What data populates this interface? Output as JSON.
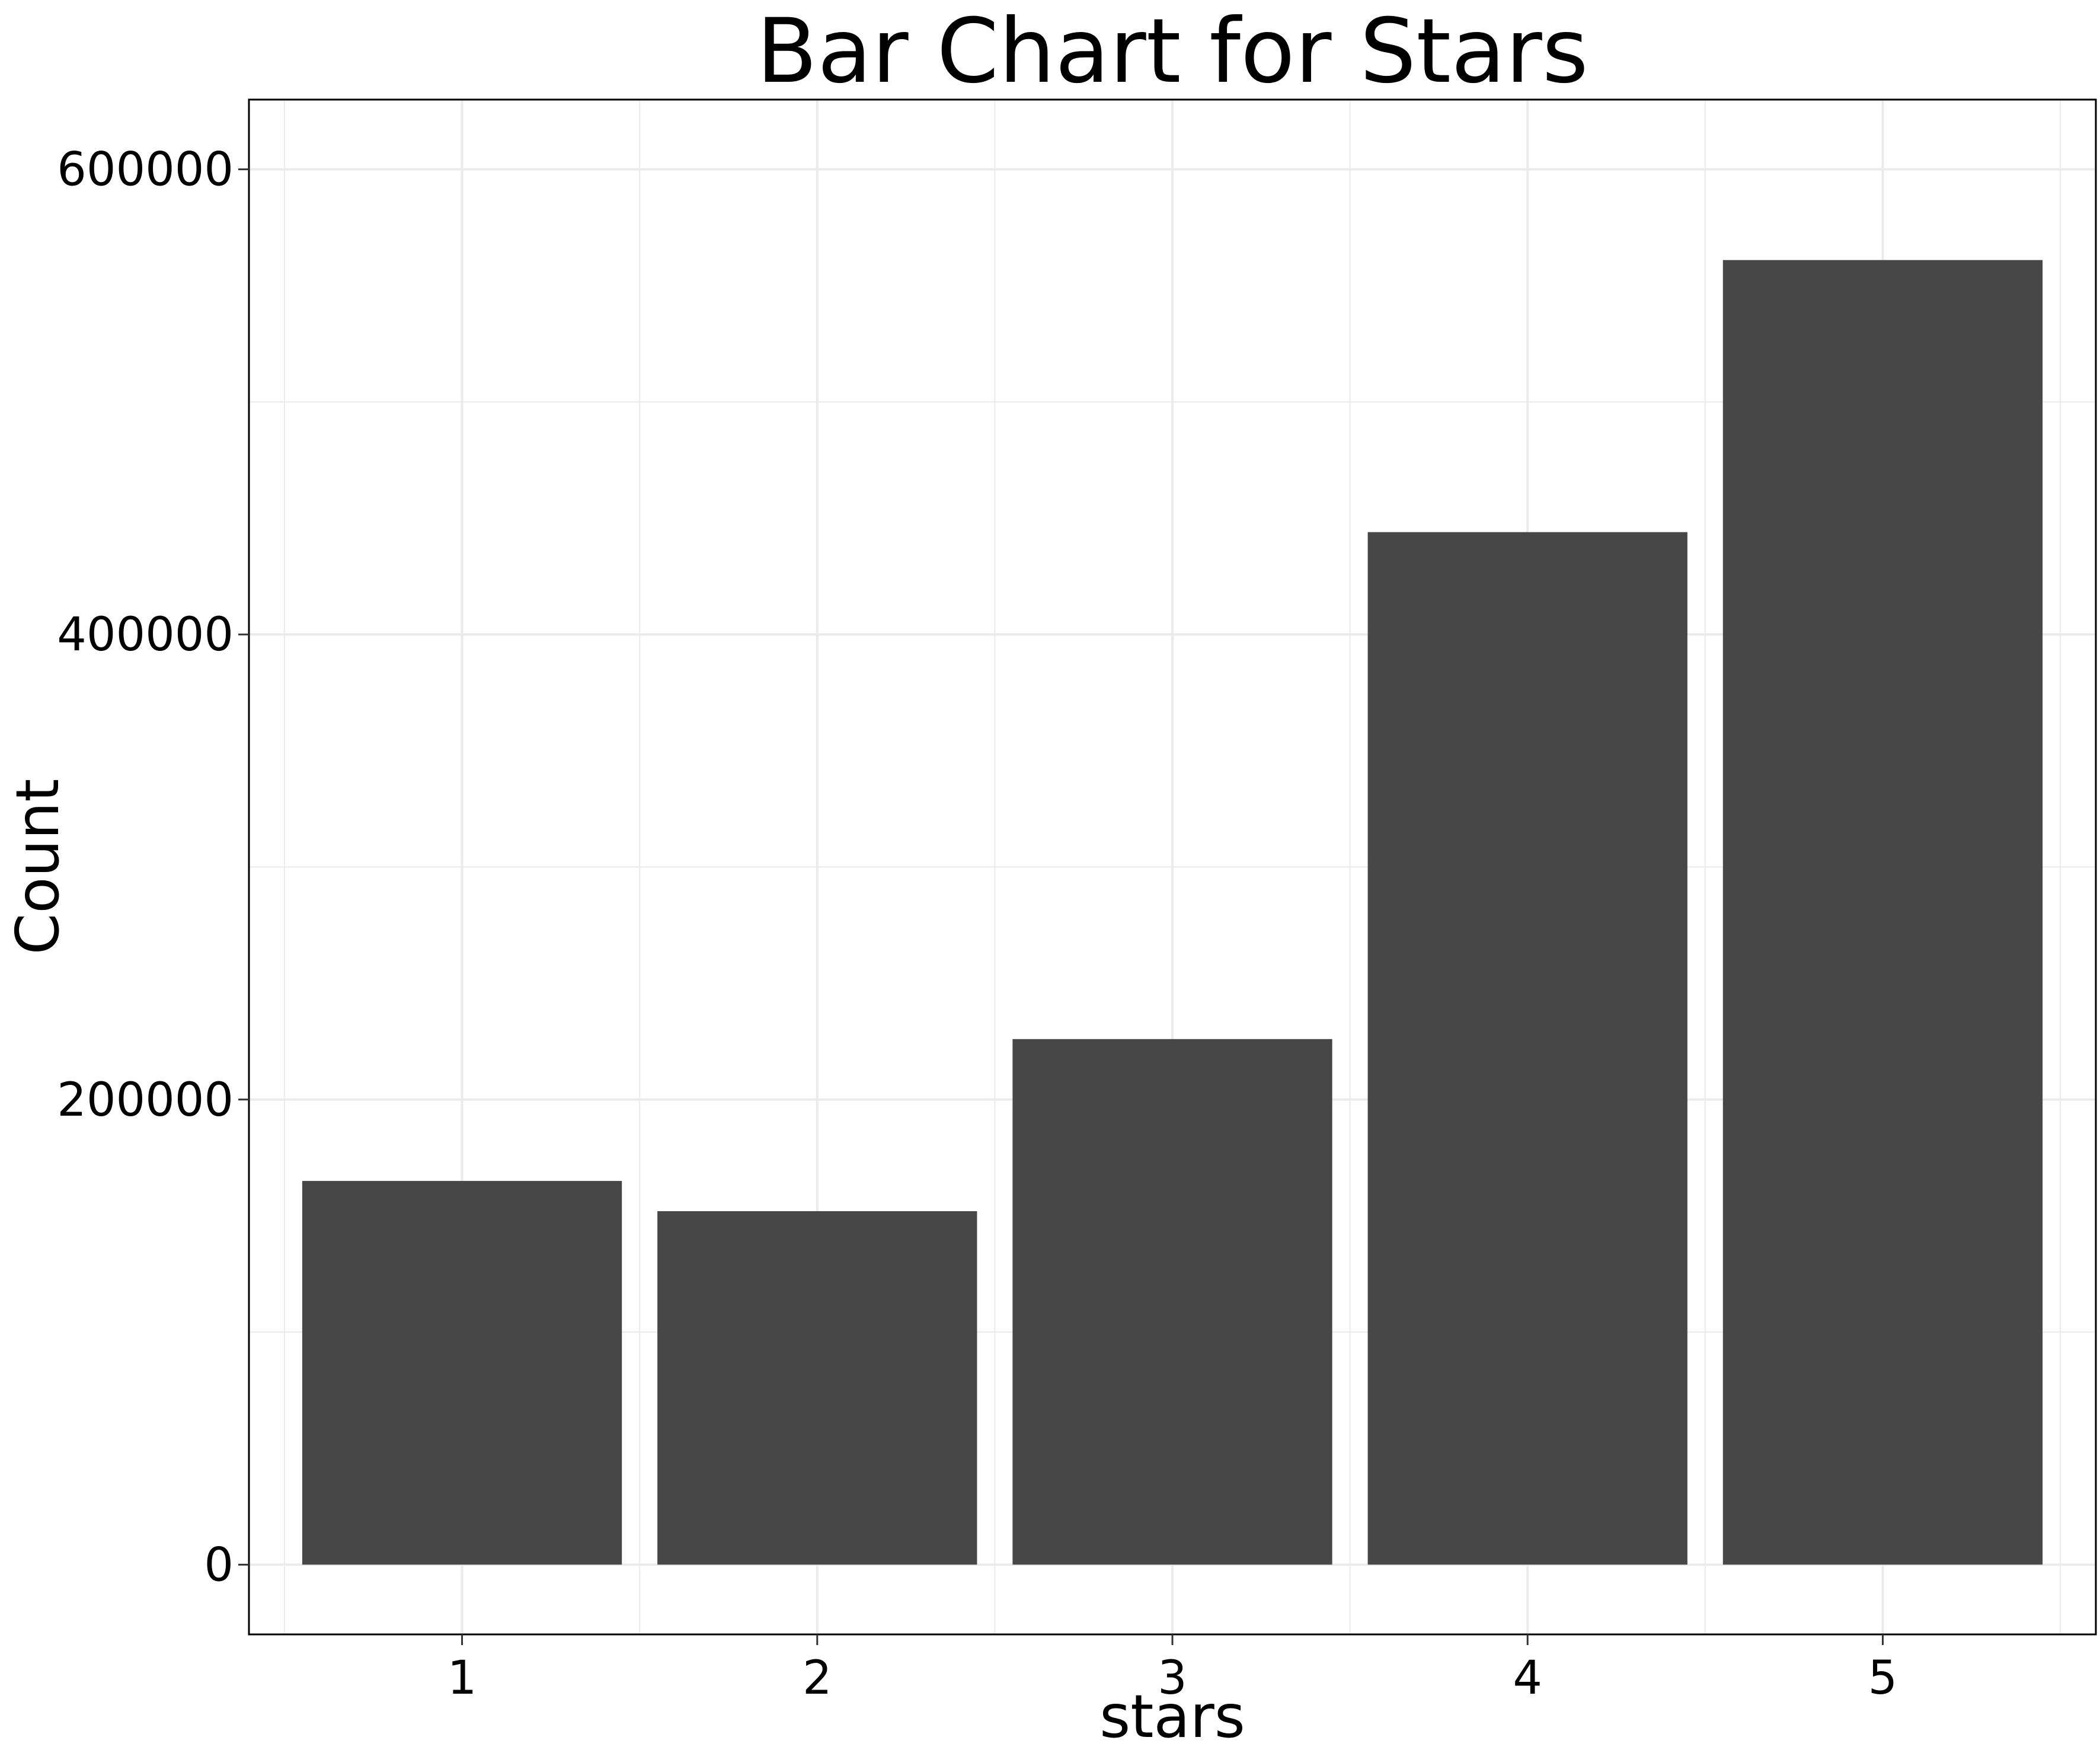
{
  "chart_data": {
    "type": "bar",
    "title": "Bar Chart for Stars",
    "xlabel": "stars",
    "ylabel": "Count",
    "categories": [
      "1",
      "2",
      "3",
      "4",
      "5"
    ],
    "values": [
      165000,
      152000,
      226000,
      444000,
      561000
    ],
    "ylim": [
      -30000,
      630000
    ],
    "y_ticks": [
      0,
      200000,
      400000,
      600000
    ],
    "y_tick_labels": [
      "0",
      "200000",
      "400000",
      "600000"
    ],
    "y_minor_ticks": [
      100000,
      300000,
      500000
    ],
    "x_lim": [
      0.4,
      5.6
    ],
    "grid": true,
    "bar_color": "#474747",
    "grid_color": "#ebebeb",
    "background": "#ffffff",
    "legend": "none"
  }
}
